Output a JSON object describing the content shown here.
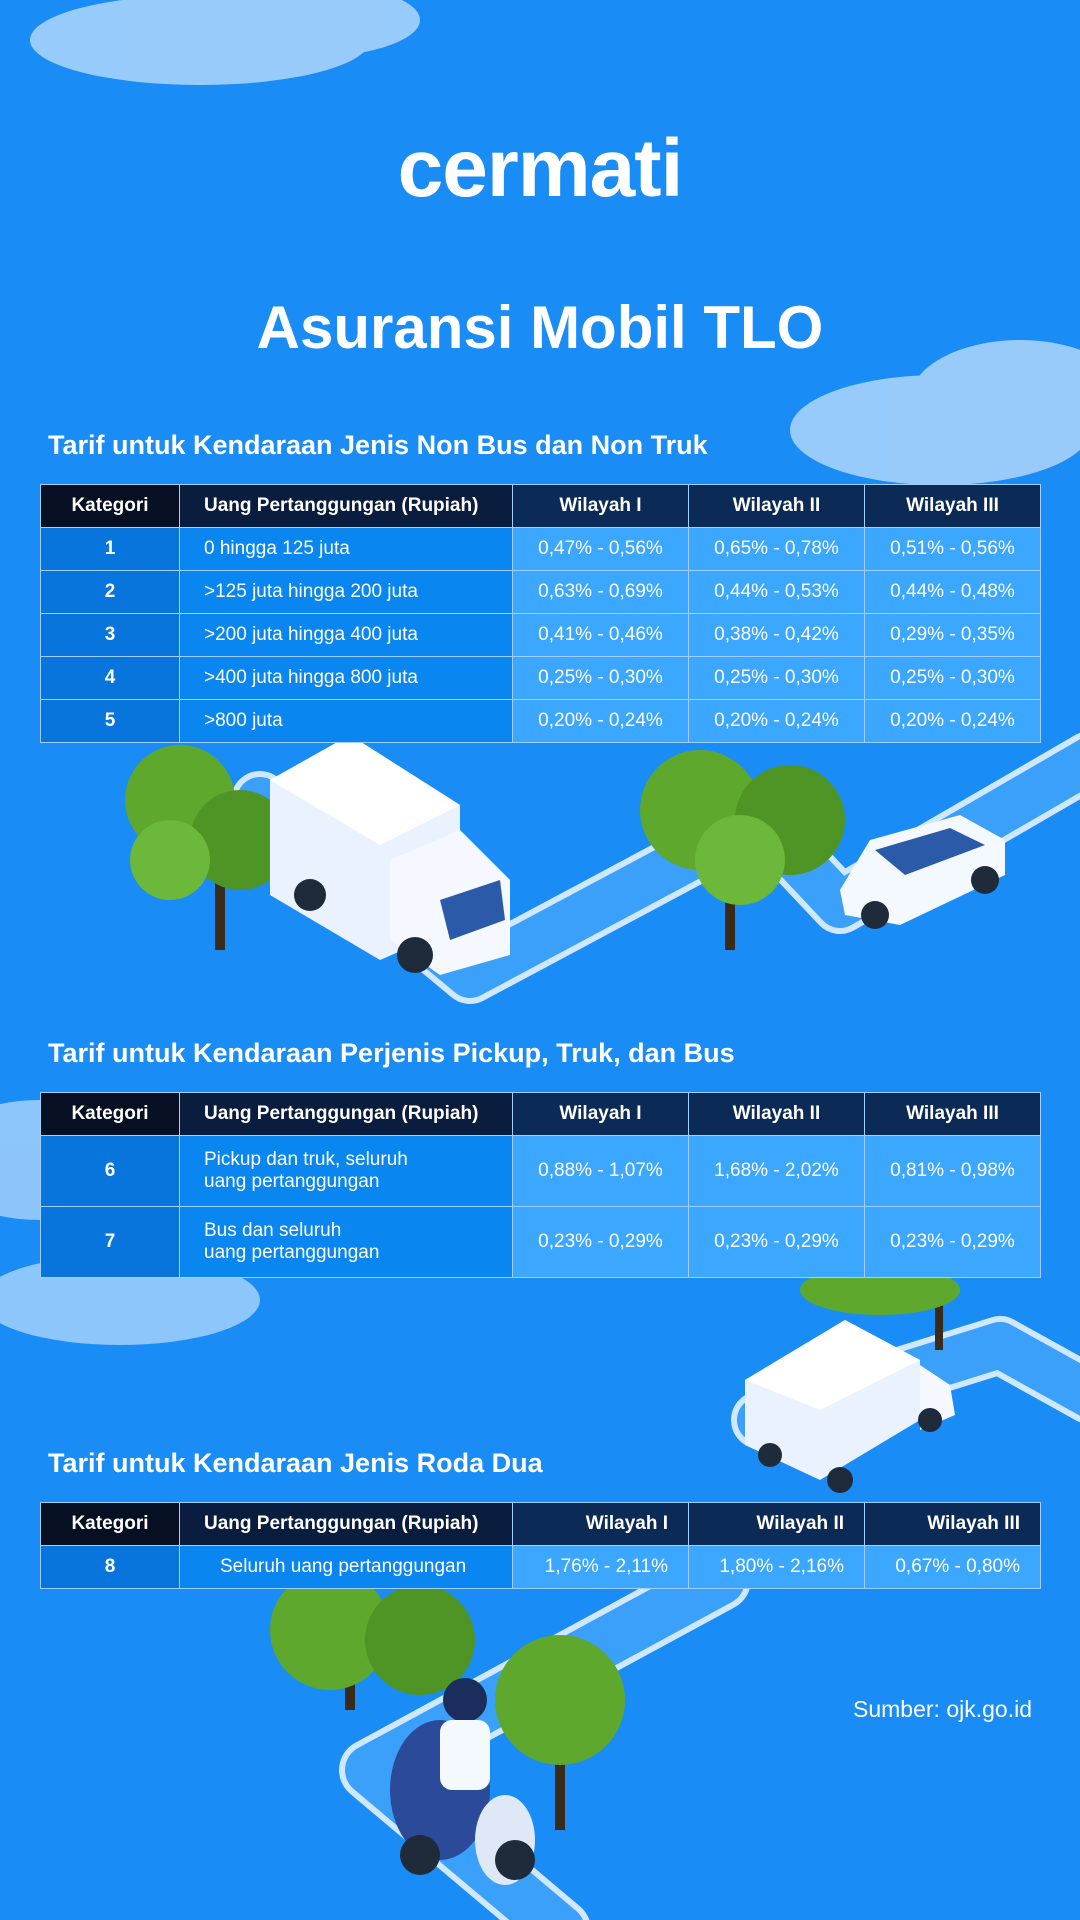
{
  "brand": {
    "logo_text": "cermati"
  },
  "title": "Asuransi Mobil TLO",
  "headers": {
    "kategori": "Kategori",
    "uang": "Uang Pertanggungan (Rupiah)",
    "w1": "Wilayah I",
    "w2": "Wilayah II",
    "w3": "Wilayah III"
  },
  "sections": [
    {
      "title": "Tarif untuk Kendaraan Jenis Non Bus dan Non Truk",
      "rows": [
        {
          "kategori": "1",
          "uang": "0 hingga 125 juta",
          "w1": "0,47% - 0,56%",
          "w2": "0,65% - 0,78%",
          "w3": "0,51% - 0,56%"
        },
        {
          "kategori": "2",
          "uang": ">125 juta hingga 200 juta",
          "w1": "0,63% - 0,69%",
          "w2": "0,44% - 0,53%",
          "w3": "0,44% - 0,48%"
        },
        {
          "kategori": "3",
          "uang": ">200 juta hingga 400 juta",
          "w1": "0,41% - 0,46%",
          "w2": "0,38% - 0,42%",
          "w3": "0,29% - 0,35%"
        },
        {
          "kategori": "4",
          "uang": ">400 juta hingga 800 juta",
          "w1": "0,25% - 0,30%",
          "w2": "0,25% - 0,30%",
          "w3": "0,25% - 0,30%"
        },
        {
          "kategori": "5",
          "uang": ">800 juta",
          "w1": "0,20% - 0,24%",
          "w2": "0,20% - 0,24%",
          "w3": "0,20% - 0,24%"
        }
      ]
    },
    {
      "title": "Tarif untuk Kendaraan Perjenis Pickup, Truk, dan Bus",
      "rows": [
        {
          "kategori": "6",
          "uang": "Pickup dan truk, seluruh\nuang pertanggungan",
          "w1": "0,88% - 1,07%",
          "w2": "1,68% - 2,02%",
          "w3": "0,81% - 0,98%"
        },
        {
          "kategori": "7",
          "uang": "Bus dan seluruh\nuang pertanggungan",
          "w1": "0,23% - 0,29%",
          "w2": "0,23% - 0,29%",
          "w3": "0,23% - 0,29%"
        }
      ]
    },
    {
      "title": "Tarif untuk Kendaraan Jenis Roda Dua",
      "rows": [
        {
          "kategori": "8",
          "uang": "Seluruh uang pertanggungan",
          "w1": "1,76% - 2,11%",
          "w2": "1,80% - 2,16%",
          "w3": "0,67% - 0,80%"
        }
      ]
    }
  ],
  "source": "Sumber: ojk.go.id",
  "colors": {
    "background": "#1a8cf5",
    "road": "#3aa0fa",
    "road_edge": "#cfe8ff",
    "tree": "#5fa82e",
    "header_dark": "#070f22",
    "cell_light": "#3ba7ff"
  },
  "illustrations": [
    "cloud-icon",
    "tree-icon",
    "box-truck-icon",
    "suv-car-icon",
    "scooter-rider-icon"
  ]
}
